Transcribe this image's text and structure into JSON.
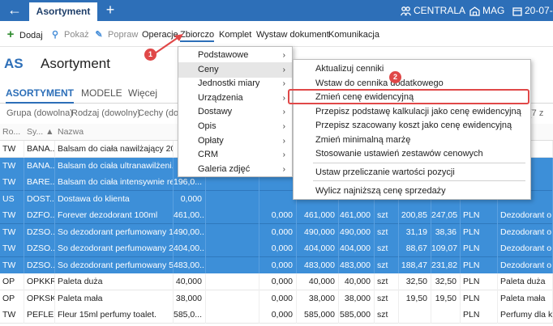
{
  "topbar": {
    "tab_title": "Asortyment",
    "plus": "+",
    "back_glyph": "←",
    "user": "CENTRALA",
    "warehouse": "MAG",
    "date": "20-07-"
  },
  "toolbar": {
    "items": [
      {
        "icon": "plus-icon",
        "glyph": "+",
        "label": "Dodaj",
        "state": "normal"
      },
      {
        "icon": "search-icon",
        "glyph": "⚲",
        "label": "Pokaż",
        "state": "disabled"
      },
      {
        "icon": "edit-icon",
        "glyph": "✎",
        "label": "Popraw",
        "state": "disabled"
      },
      {
        "icon": "",
        "glyph": "",
        "label": "Operacje",
        "state": "normal"
      },
      {
        "icon": "",
        "glyph": "",
        "label": "Zbiorczo",
        "state": "active"
      },
      {
        "icon": "",
        "glyph": "",
        "label": "Komplet",
        "state": "normal"
      },
      {
        "icon": "",
        "glyph": "",
        "label": "Wystaw dokument",
        "state": "normal"
      },
      {
        "icon": "",
        "glyph": "",
        "label": "Komunikacja",
        "state": "normal"
      }
    ]
  },
  "header": {
    "badge": "AS",
    "title": "Asortyment"
  },
  "tabs": [
    "ASORTYMENT",
    "MODELE",
    "Więcej"
  ],
  "filters": [
    "Grupa (dowolna)",
    "Rodzaj (dowolny)",
    "Cechy (dow",
    "(7 z"
  ],
  "table": {
    "headers": [
      "Ro...",
      "Sy... ▲",
      "Nazwa"
    ],
    "rows": [
      {
        "selected": false,
        "cells": [
          "TW",
          "BANA...",
          "Balsam do ciała nawilżający 20...",
          "",
          "",
          "",
          "",
          "",
          "",
          "",
          "",
          "",
          "o Ciał"
        ]
      },
      {
        "selected": true,
        "cells": [
          "TW",
          "BANA...",
          "Balsam do ciała ultranawilżeni...",
          "",
          "",
          "",
          "",
          "",
          "",
          "",
          "",
          "",
          "o Ciał"
        ]
      },
      {
        "selected": true,
        "cells": [
          "TW",
          "BARE...",
          "Balsam do ciała intensywnie re...",
          "196,0...",
          "",
          "",
          "",
          "",
          "",
          "",
          "",
          "",
          "o Ciał"
        ]
      },
      {
        "selected": true,
        "cells": [
          "US",
          "DOST...",
          "Dostawa do klienta",
          "0,000",
          "",
          "",
          "",
          "",
          "",
          "",
          "",
          "",
          ""
        ]
      },
      {
        "selected": true,
        "cells": [
          "TW",
          "DZFO...",
          "Forever dezodorant 100ml",
          "461,00...",
          "",
          "0,000",
          "461,000",
          "461,000",
          "szt",
          "200,85",
          "247,05",
          "PLN",
          "Dezodorant o"
        ]
      },
      {
        "selected": true,
        "cells": [
          "TW",
          "DZSO...",
          "So dezodorant perfumowany 1...",
          "490,00...",
          "",
          "0,000",
          "490,000",
          "490,000",
          "szt",
          "31,19",
          "38,36",
          "PLN",
          "Dezodorant o"
        ]
      },
      {
        "selected": true,
        "cells": [
          "TW",
          "DZSO...",
          "So dezodorant perfumowany 2...",
          "404,00...",
          "",
          "0,000",
          "404,000",
          "404,000",
          "szt",
          "88,67",
          "109,07",
          "PLN",
          "Dezodorant o"
        ]
      },
      {
        "selected": true,
        "cells": [
          "TW",
          "DZSO...",
          "So dezodorant perfumowany 5...",
          "483,00...",
          "",
          "0,000",
          "483,000",
          "483,000",
          "szt",
          "188,47",
          "231,82",
          "PLN",
          "Dezodorant o"
        ]
      },
      {
        "selected": false,
        "cells": [
          "OP",
          "OPKKR",
          "Paleta duża",
          "40,000",
          "",
          "0,000",
          "40,000",
          "40,000",
          "szt",
          "32,50",
          "32,50",
          "PLN",
          "Paleta duża"
        ]
      },
      {
        "selected": false,
        "cells": [
          "OP",
          "OPKSK",
          "Paleta mała",
          "38,000",
          "",
          "0,000",
          "38,000",
          "38,000",
          "szt",
          "19,50",
          "19,50",
          "PLN",
          "Paleta mała"
        ]
      },
      {
        "selected": false,
        "cells": [
          "TW",
          "PEFLE...",
          "Fleur 15ml perfumy toalet.",
          "585,0...",
          "",
          "0,000",
          "585,000",
          "585,000",
          "szt",
          "",
          "",
          "PLN",
          "Perfumy dla ko"
        ]
      }
    ]
  },
  "submenu1": {
    "items": [
      {
        "label": "Podstawowe",
        "arrow": "›",
        "highlighted": false
      },
      {
        "label": "Ceny",
        "arrow": "›",
        "highlighted": true
      },
      {
        "label": "Jednostki miary",
        "arrow": "›",
        "highlighted": false
      },
      {
        "label": "Urządzenia",
        "arrow": "›",
        "highlighted": false
      },
      {
        "label": "Dostawy",
        "arrow": "›",
        "highlighted": false
      },
      {
        "label": "Opis",
        "arrow": "›",
        "highlighted": false
      },
      {
        "label": "Opłaty",
        "arrow": "›",
        "highlighted": false
      },
      {
        "label": "CRM",
        "arrow": "›",
        "highlighted": false
      },
      {
        "label": "Galeria zdjęć",
        "arrow": "›",
        "highlighted": false
      }
    ]
  },
  "submenu2": {
    "items": [
      {
        "label": "Aktualizuj cenniki"
      },
      {
        "label": "Wstaw do cennika dodatkowego"
      },
      {
        "label": "Zmień cenę ewidencyjną"
      },
      {
        "label": "Przepisz podstawę kalkulacji jako cenę ewidencyjną"
      },
      {
        "label": "Przepisz szacowany koszt jako cenę ewidencyjną"
      },
      {
        "label": "Zmień minimalną marżę"
      },
      {
        "label": "Stosowanie ustawień zestawów cenowych"
      },
      {
        "label": "Ustaw przeliczanie wartości pozycji"
      },
      {
        "label": "Wylicz najniższą cenę sprzedaży"
      }
    ]
  },
  "annotations": {
    "step1": "1",
    "step2": "2",
    "color": "#e04848"
  }
}
